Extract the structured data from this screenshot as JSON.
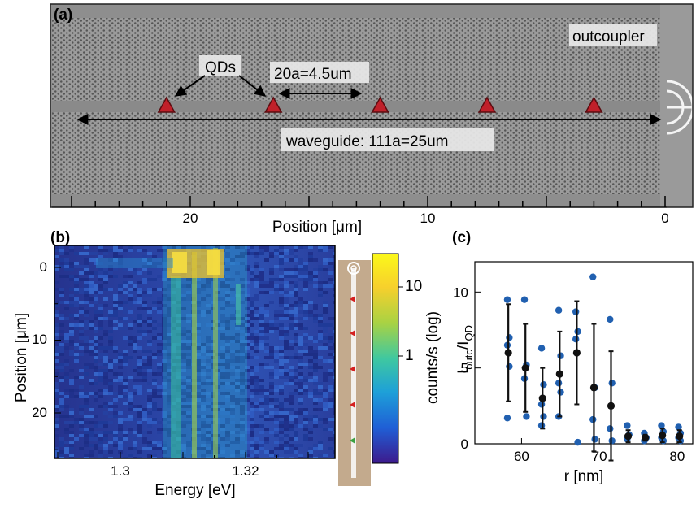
{
  "panel_a": {
    "label": "(a)",
    "annotations": {
      "qds": "QDs",
      "outcoupler": "outcoupler",
      "spacing": "20a=4.5um",
      "waveguide": "waveguide: 111a=25um"
    },
    "axis": {
      "xlabel": "Position [μm]",
      "ticks": [
        "20",
        "10",
        "0"
      ]
    },
    "qd_positions_um": [
      21,
      16.5,
      12,
      7.5,
      3
    ],
    "qd_color": "#c0202a"
  },
  "panel_b": {
    "label": "(b)",
    "xlabel": "Energy [eV]",
    "ylabel": "Position [μm]",
    "xticks": [
      "1.3",
      "1.32"
    ],
    "yticks": [
      "0",
      "10",
      "20"
    ],
    "colorbar": {
      "label": "counts/s (log)",
      "ticks": [
        "10",
        "1"
      ],
      "colors": [
        "#3d1a8c",
        "#1f5fd6",
        "#1ea0d8",
        "#3fc8a0",
        "#a9d243",
        "#f7d02c",
        "#fbf81a"
      ]
    },
    "inset_markers": {
      "red_color": "#d42020",
      "green_color": "#3aa040"
    }
  },
  "chart_data": {
    "type": "scatter",
    "panel_label": "(c)",
    "xlabel": "r [nm]",
    "ylabel_main": "I",
    "ylabel_sub1": "outc",
    "ylabel_mid": "/I",
    "ylabel_sub2": "QD",
    "xlim": [
      54,
      82
    ],
    "ylim": [
      0,
      12
    ],
    "xticks": [
      "60",
      "70",
      "80"
    ],
    "yticks": [
      "0",
      "5",
      "10"
    ],
    "colors": {
      "points": "#2160b0",
      "mean": "#111111"
    },
    "groups": [
      {
        "r": 58.3,
        "points": [
          9.5,
          7.0,
          6.5,
          5.1,
          1.7
        ],
        "mean": 6.0,
        "err": 3.2
      },
      {
        "r": 60.5,
        "points": [
          9.5,
          5.2,
          4.3,
          1.8
        ],
        "mean": 5.0,
        "err": 2.9
      },
      {
        "r": 62.7,
        "points": [
          6.3,
          3.9,
          2.6,
          1.8,
          1.2
        ],
        "mean": 3.0,
        "err": 2.0
      },
      {
        "r": 64.9,
        "points": [
          8.8,
          5.8,
          4.0,
          3.4,
          1.8
        ],
        "mean": 4.6,
        "err": 2.8
      },
      {
        "r": 67.1,
        "points": [
          8.7,
          7.4,
          6.9,
          0.1
        ],
        "mean": 6.0,
        "err": 3.4
      },
      {
        "r": 69.3,
        "points": [
          11.0,
          3.7,
          1.6,
          0.3
        ],
        "mean": 3.7,
        "err": 4.2
      },
      {
        "r": 71.5,
        "points": [
          8.2,
          4.0,
          1.0,
          0.2
        ],
        "mean": 2.5,
        "err": 3.6
      },
      {
        "r": 73.7,
        "points": [
          1.2,
          0.6,
          0.3
        ],
        "mean": 0.5,
        "err": 0.4
      },
      {
        "r": 75.9,
        "points": [
          0.7,
          0.4,
          0.2
        ],
        "mean": 0.4,
        "err": 0.2
      },
      {
        "r": 78.1,
        "points": [
          1.2,
          0.8,
          0.4,
          0.2
        ],
        "mean": 0.55,
        "err": 0.45
      },
      {
        "r": 80.3,
        "points": [
          1.1,
          0.7,
          0.4,
          0.2
        ],
        "mean": 0.5,
        "err": 0.4
      }
    ]
  }
}
